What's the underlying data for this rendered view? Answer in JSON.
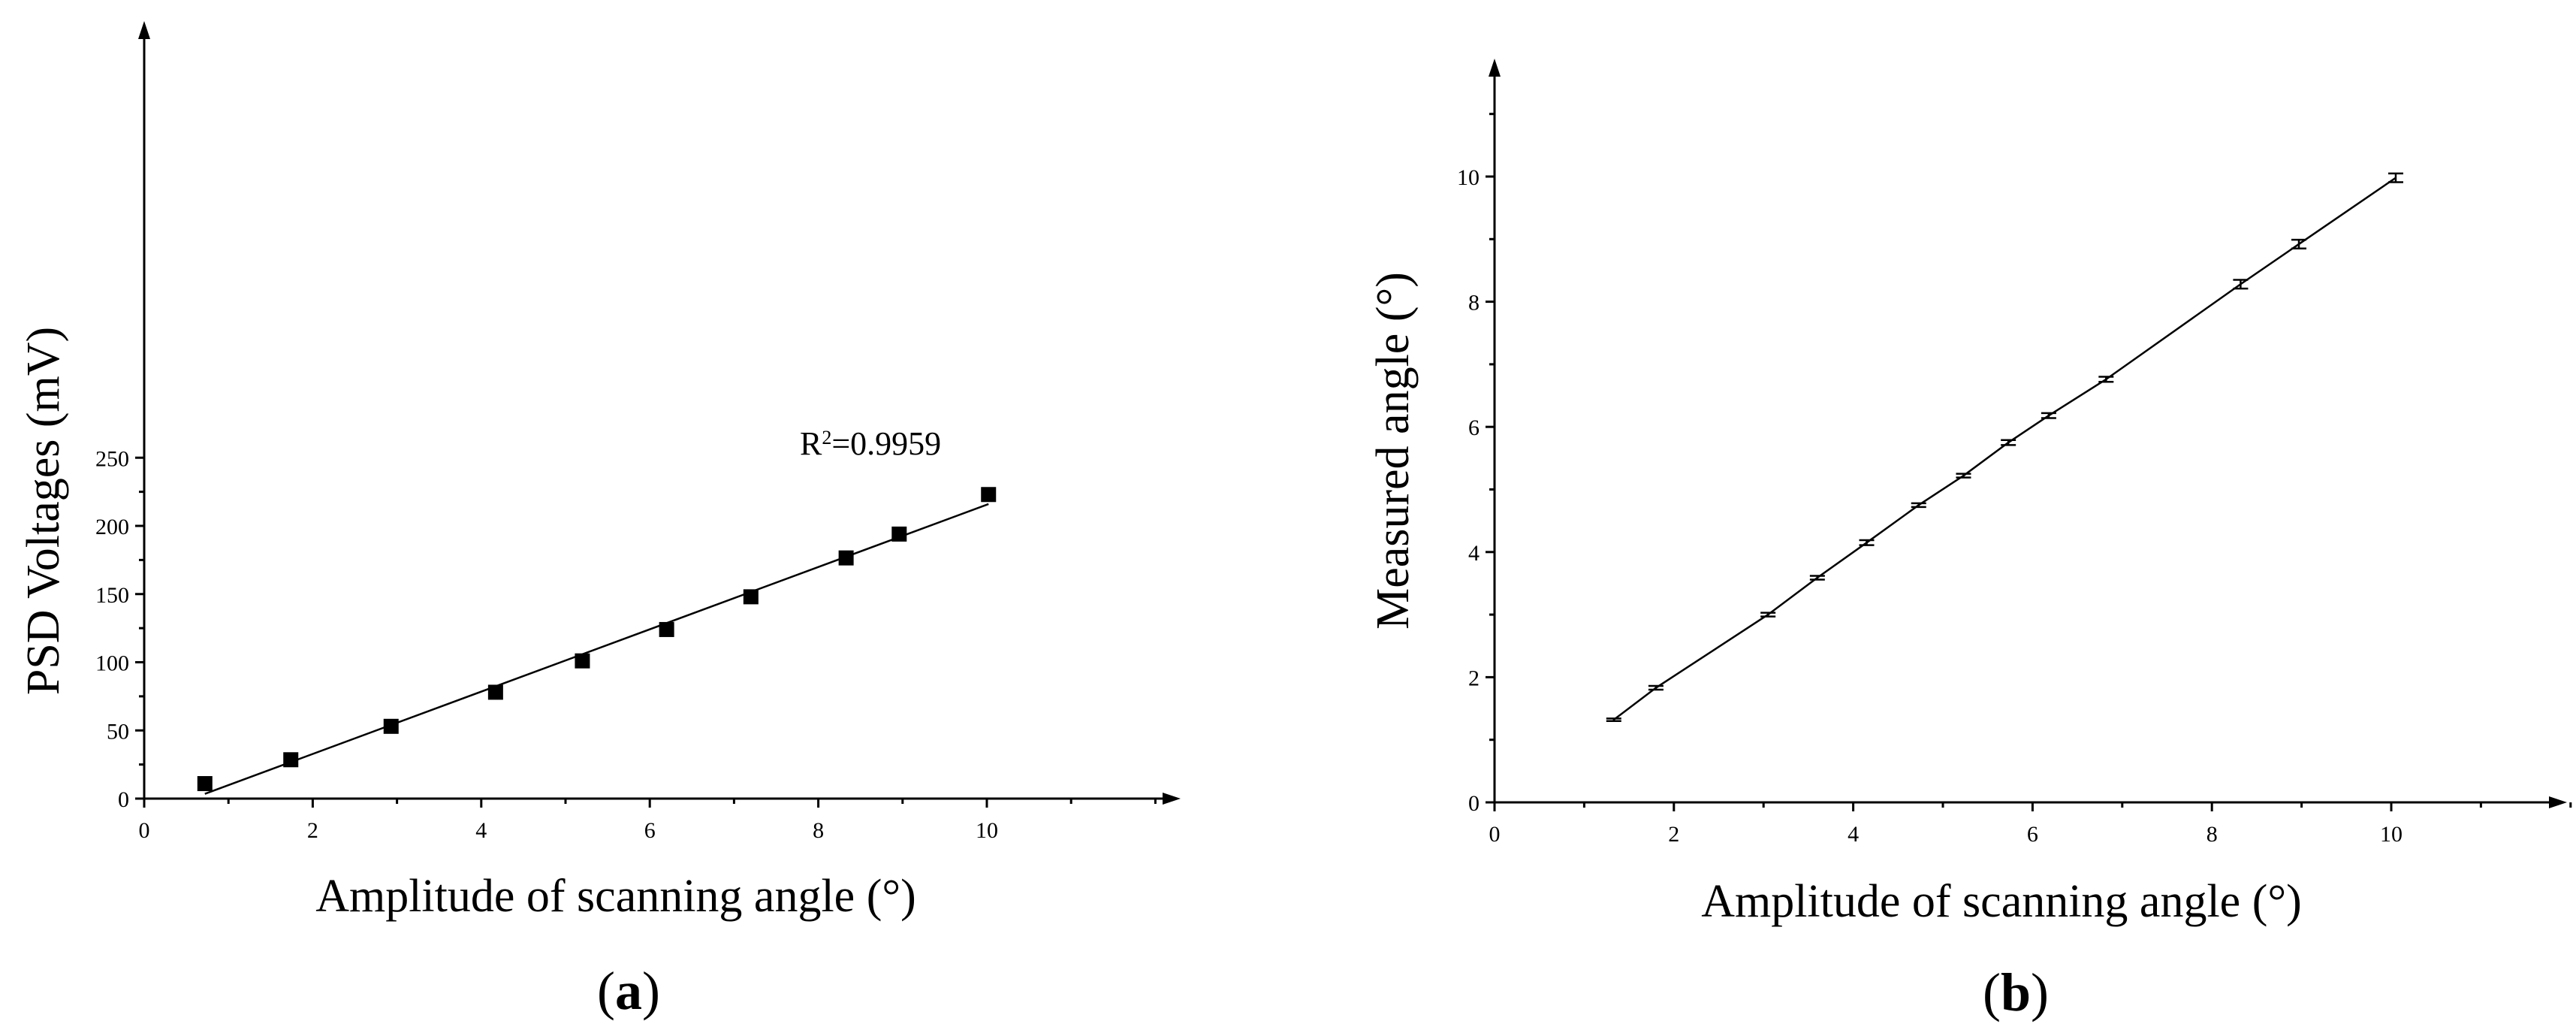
{
  "chart_data": [
    {
      "type": "scatter",
      "panel_label": "a",
      "xlabel": "Amplitude of scanning angle (°)",
      "ylabel": "PSD Voltages (mV)",
      "xlim": [
        0,
        12
      ],
      "ylim": [
        0,
        280
      ],
      "xticks": [
        0,
        2,
        4,
        6,
        8,
        10
      ],
      "yticks": [
        0,
        50,
        100,
        150,
        200,
        250
      ],
      "grid": false,
      "series": [
        {
          "marker": "square",
          "x": [
            0.72,
            1.74,
            2.93,
            4.17,
            5.2,
            6.2,
            7.2,
            8.33,
            8.96,
            10.02
          ],
          "y": [
            11,
            28.5,
            53,
            78,
            101,
            124,
            148,
            176.5,
            194,
            223
          ]
        }
      ],
      "fit": {
        "x": [
          0.72,
          10.02
        ],
        "y": [
          3.5,
          216
        ]
      },
      "annotation": {
        "prefix": "R",
        "sup": "2",
        "value": "=0.9959"
      }
    },
    {
      "type": "line",
      "panel_label": "b",
      "xlabel": "Amplitude of scanning angle (°)",
      "ylabel": "Measured angle (°)",
      "xlim": [
        0,
        12
      ],
      "ylim": [
        0,
        12
      ],
      "xticks": [
        0,
        2,
        4,
        6,
        8,
        10
      ],
      "yticks": [
        0,
        2,
        4,
        6,
        8,
        10
      ],
      "grid": false,
      "series": [
        {
          "marker": "errorbar",
          "x": [
            1.33,
            1.8,
            3.05,
            3.6,
            4.15,
            4.73,
            5.23,
            5.73,
            6.18,
            6.82,
            8.32,
            8.97,
            10.05
          ],
          "y": [
            1.32,
            1.83,
            3.0,
            3.59,
            4.15,
            4.75,
            5.22,
            5.75,
            6.18,
            6.76,
            8.28,
            8.92,
            9.98
          ],
          "err": [
            0.02,
            0.03,
            0.03,
            0.03,
            0.04,
            0.03,
            0.03,
            0.04,
            0.04,
            0.04,
            0.07,
            0.07,
            0.07
          ]
        }
      ]
    }
  ]
}
